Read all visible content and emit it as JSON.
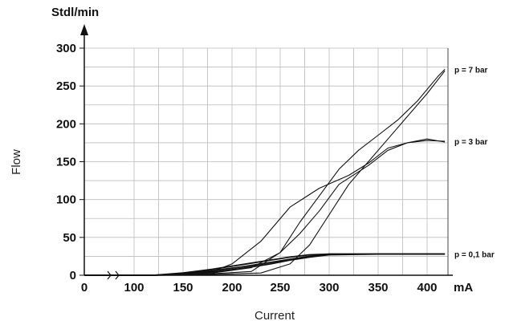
{
  "chart_data": {
    "type": "line",
    "xlabel": "Current",
    "ylabel": "Flow",
    "x_unit": "mA",
    "y_unit": "Stdl/min",
    "xlim": [
      0,
      420
    ],
    "ylim": [
      0,
      300
    ],
    "x_ticks": [
      "0",
      "100",
      "150",
      "200",
      "250",
      "300",
      "350",
      "400"
    ],
    "y_ticks": [
      "0",
      "50",
      "100",
      "150",
      "200",
      "250",
      "300"
    ],
    "grid": true,
    "series": [
      {
        "name": "p = 7 bar",
        "lines": [
          {
            "x": [
              0,
              120,
              180,
              220,
              250,
              270,
              290,
              310,
              330,
              350,
              370,
              390,
              410,
              417
            ],
            "y": [
              0,
              0,
              2,
              5,
              30,
              70,
              105,
              140,
              165,
              185,
              205,
              230,
              262,
              272
            ]
          },
          {
            "x": [
              0,
              120,
              180,
              230,
              260,
              280,
              300,
              320,
              340,
              360,
              380,
              400,
              417
            ],
            "y": [
              0,
              0,
              1,
              3,
              15,
              40,
              80,
              120,
              150,
              180,
              210,
              240,
              270
            ]
          }
        ]
      },
      {
        "name": "p = 3 bar",
        "lines": [
          {
            "x": [
              0,
              120,
              180,
              200,
              230,
              260,
              290,
              320,
              340,
              360,
              380,
              400,
              417
            ],
            "y": [
              0,
              0,
              5,
              15,
              45,
              90,
              115,
              132,
              148,
              168,
              175,
              178,
              177
            ]
          },
          {
            "x": [
              0,
              120,
              180,
              220,
              250,
              270,
              290,
              310,
              340,
              360,
              380,
              400,
              417
            ],
            "y": [
              0,
              0,
              3,
              10,
              30,
              55,
              85,
              120,
              145,
              165,
              175,
              180,
              176
            ]
          }
        ]
      },
      {
        "name": "p = 0,1 bar",
        "lines": [
          {
            "x": [
              0,
              120,
              150,
              180,
              210,
              240,
              260,
              280,
              300,
              350,
              417
            ],
            "y": [
              0,
              0,
              3,
              8,
              14,
              20,
              24,
              27,
              28,
              28,
              28
            ]
          },
          {
            "x": [
              0,
              120,
              150,
              180,
              210,
              240,
              260,
              280,
              300,
              350,
              417
            ],
            "y": [
              0,
              0,
              2,
              6,
              11,
              17,
              21,
              25,
              28,
              28,
              28
            ]
          },
          {
            "x": [
              0,
              120,
              150,
              180,
              210,
              240,
              260,
              280,
              300,
              350,
              417
            ],
            "y": [
              0,
              0,
              1,
              4,
              9,
              15,
              20,
              24,
              27,
              28,
              28
            ]
          }
        ]
      }
    ]
  }
}
